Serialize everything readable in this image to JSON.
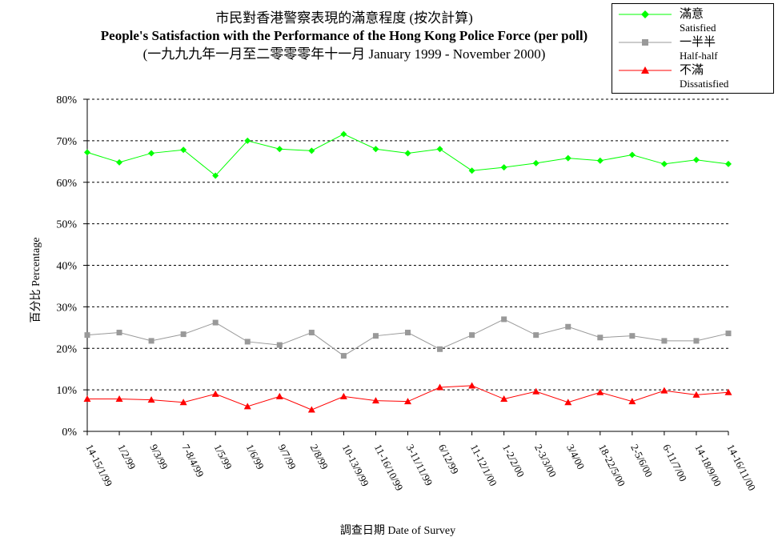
{
  "title": {
    "zh": "市民對香港警察表現的滿意程度 (按次計算)",
    "en": "People's Satisfaction with the Performance of the Hong Kong Police Force (per poll)",
    "range": "(一九九九年一月至二零零零年十一月 January 1999 - November 2000)"
  },
  "legend": {
    "placement": "top-right",
    "items": [
      {
        "zh": "滿意",
        "en": "Satisfied",
        "color": "#00ff00",
        "marker": "diamond"
      },
      {
        "zh": "一半半",
        "en": "Half-half",
        "color": "#999999",
        "marker": "square"
      },
      {
        "zh": "不滿",
        "en": "Dissatisfied",
        "color": "#ff0000",
        "marker": "triangle"
      }
    ]
  },
  "chart_data": {
    "type": "line",
    "xlabel": "調查日期 Date of Survey",
    "ylabel": "百分比 Percentage",
    "ylim": [
      0,
      80
    ],
    "yticks": [
      "0%",
      "10%",
      "20%",
      "30%",
      "40%",
      "50%",
      "60%",
      "70%",
      "80%"
    ],
    "grid": "horizontal-dashed",
    "categories": [
      "14-15/1/99",
      "1/2/99",
      "9/3/99",
      "7-8/4/99",
      "1/5/99",
      "1/6/99",
      "9/7/99",
      "2/8/99",
      "10-13/9/99",
      "11-16/10/99",
      "3-11/11/99",
      "6/12/99",
      "11-12/1/00",
      "1-2/2/00",
      "2-3/3/00",
      "3/4/00",
      "18-22/5/00",
      "2-5/6/00",
      "6-11/7/00",
      "14-18/9/00",
      "14-16/11/00"
    ],
    "series": [
      {
        "name": "滿意 Satisfied",
        "color": "#00ff00",
        "marker": "diamond",
        "values": [
          67.2,
          64.8,
          67.0,
          67.8,
          61.6,
          70.0,
          68.0,
          67.6,
          71.6,
          68.0,
          67.0,
          68.0,
          62.8,
          63.6,
          64.6,
          65.8,
          65.2,
          66.6,
          64.4,
          65.4,
          64.4
        ]
      },
      {
        "name": "一半半 Half-half",
        "color": "#999999",
        "marker": "square",
        "values": [
          23.2,
          23.8,
          21.8,
          23.4,
          26.2,
          21.6,
          20.8,
          23.8,
          18.2,
          23.0,
          23.8,
          19.8,
          23.2,
          27.0,
          23.2,
          25.2,
          22.6,
          23.0,
          21.8,
          21.8,
          23.6
        ]
      },
      {
        "name": "不滿 Dissatisfied",
        "color": "#ff0000",
        "marker": "triangle",
        "values": [
          7.8,
          7.8,
          7.6,
          7.0,
          9.0,
          6.0,
          8.4,
          5.2,
          8.4,
          7.4,
          7.2,
          10.6,
          11.0,
          7.8,
          9.6,
          7.0,
          9.4,
          7.2,
          9.8,
          8.8,
          9.4
        ]
      }
    ]
  }
}
